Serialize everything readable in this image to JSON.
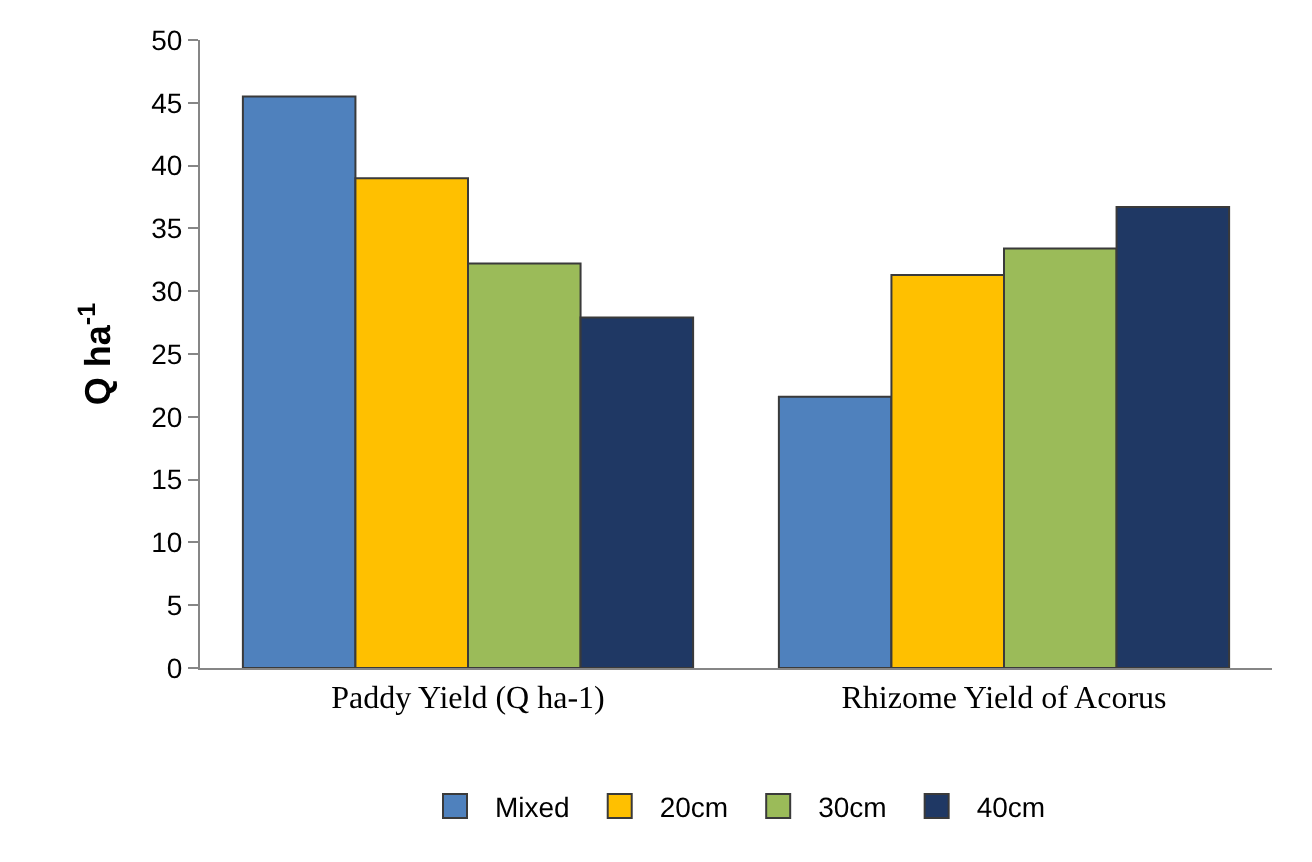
{
  "chart_data": {
    "type": "bar",
    "ylabel": "Q ha$^{-1}$",
    "categories": [
      "Paddy Yield (Q ha-1)",
      "Rhizome Yield of Acorus"
    ],
    "series": [
      {
        "name": "Mixed",
        "color": "#4f81bd",
        "values": [
          45.5,
          21.6
        ]
      },
      {
        "name": "20cm",
        "color": "#ffc000",
        "values": [
          39.0,
          31.3
        ]
      },
      {
        "name": "30cm",
        "color": "#9bbb59",
        "values": [
          32.2,
          33.4
        ]
      },
      {
        "name": "40cm",
        "color": "#1f3864",
        "values": [
          27.9,
          36.7
        ]
      }
    ],
    "ylim": [
      0,
      50
    ],
    "yticks": [
      0,
      5,
      10,
      15,
      20,
      25,
      30,
      35,
      40,
      45,
      50
    ],
    "legend": "bottom"
  }
}
